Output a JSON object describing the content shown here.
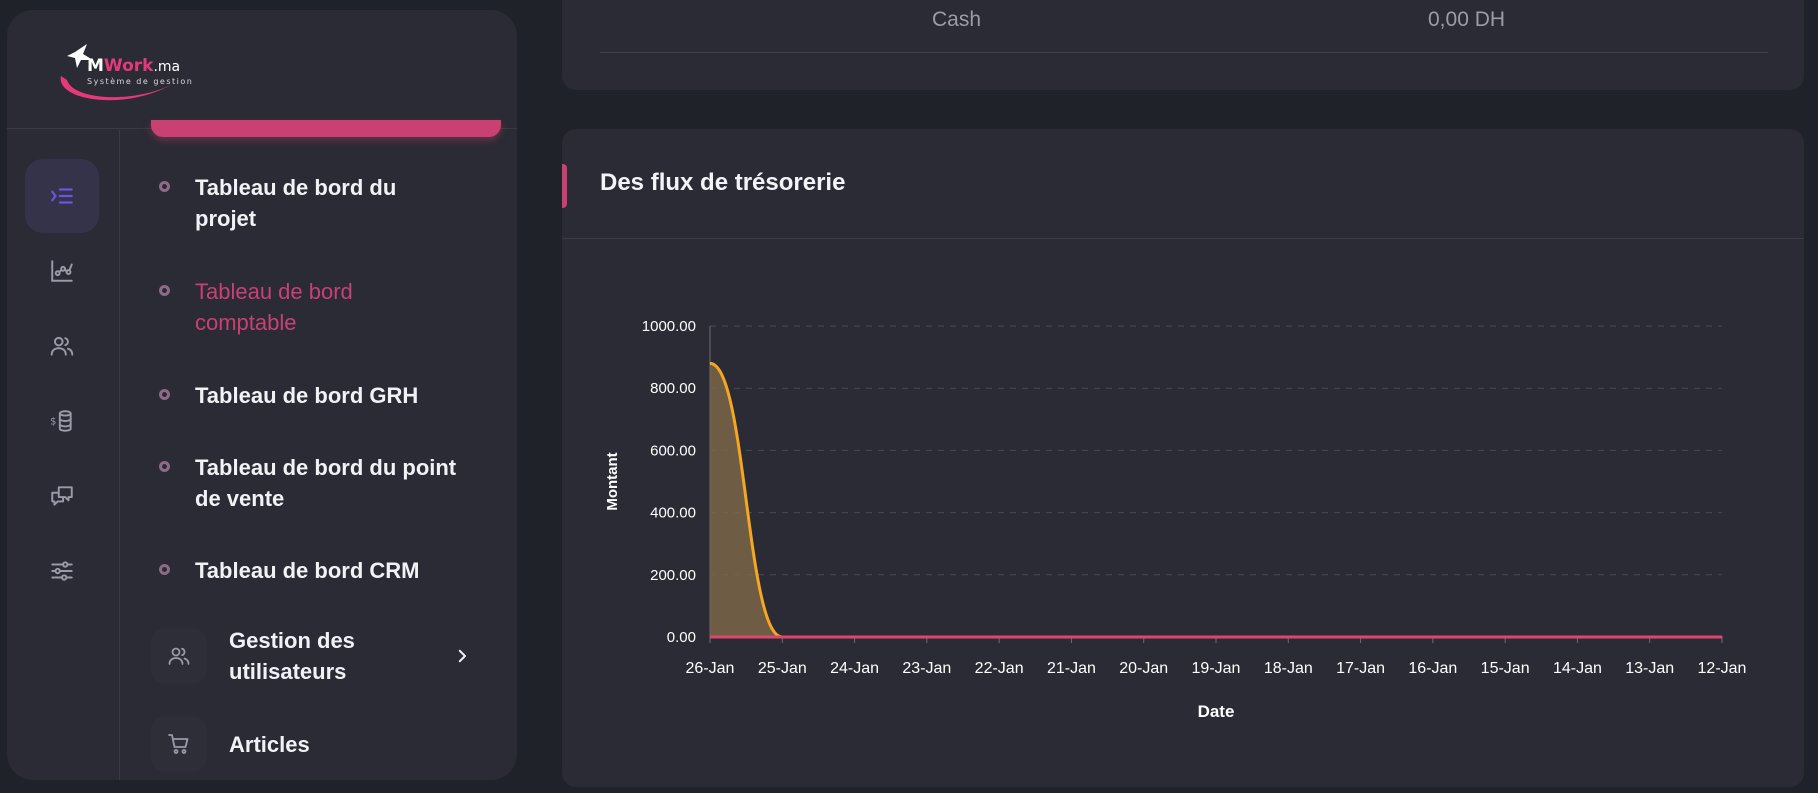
{
  "brand": {
    "name_m": "M",
    "name_work": "Work",
    "name_tld": ".ma",
    "tagline": "Système de gestion"
  },
  "rail": [
    {
      "icon": "indent-list-icon",
      "active": true
    },
    {
      "icon": "chart-line-icon",
      "active": false
    },
    {
      "icon": "users-icon",
      "active": false
    },
    {
      "icon": "money-stack-icon",
      "active": false
    },
    {
      "icon": "chat-bubbles-icon",
      "active": false
    },
    {
      "icon": "sliders-icon",
      "active": false
    }
  ],
  "menu": {
    "sub_items": [
      {
        "label_1": "Tableau de bord du",
        "label_2": "projet",
        "active": false
      },
      {
        "label_1": "Tableau de bord",
        "label_2": "comptable",
        "active": true
      },
      {
        "label_1": "Tableau de bord GRH",
        "label_2": "",
        "active": false
      },
      {
        "label_1": "Tableau de bord du point",
        "label_2": "de vente",
        "active": false
      },
      {
        "label_1": "Tableau de bord CRM",
        "label_2": "",
        "active": false
      }
    ],
    "groups": [
      {
        "label_1": "Gestion des",
        "label_2": "utilisateurs",
        "icon": "users-icon",
        "has_chevron": true
      },
      {
        "label_1": "Articles",
        "label_2": "",
        "icon": "cart-icon",
        "has_chevron": false
      }
    ]
  },
  "cash_row": {
    "label": "Cash",
    "value": "0,00 DH"
  },
  "chart_card": {
    "title": "Des flux de trésorerie"
  },
  "colors": {
    "accent": "#c94072",
    "line": "#f5a623",
    "area_fill": "#7a6648",
    "baseline": "#e0456f"
  },
  "chart_data": {
    "type": "area",
    "x": [
      "26-Jan",
      "25-Jan",
      "24-Jan",
      "23-Jan",
      "22-Jan",
      "21-Jan",
      "20-Jan",
      "19-Jan",
      "18-Jan",
      "17-Jan",
      "16-Jan",
      "15-Jan",
      "14-Jan",
      "13-Jan",
      "12-Jan"
    ],
    "series": [
      {
        "values": [
          880,
          0,
          0,
          0,
          0,
          0,
          0,
          0,
          0,
          0,
          0,
          0,
          0,
          0,
          0
        ]
      },
      {
        "values": [
          0,
          0,
          0,
          0,
          0,
          0,
          0,
          0,
          0,
          0,
          0,
          0,
          0,
          0,
          0
        ]
      }
    ],
    "yticks": [
      "0.00",
      "200.00",
      "400.00",
      "600.00",
      "800.00",
      "1000.00"
    ],
    "ylim": [
      0,
      1000
    ],
    "xlabel": "Date",
    "ylabel": "Montant",
    "grid": true
  }
}
